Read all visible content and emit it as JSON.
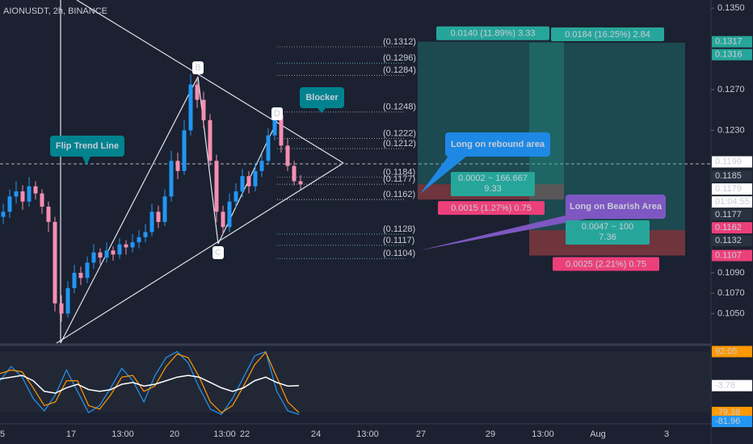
{
  "chart_data": {
    "type": "candlestick",
    "title": "AIONUSDT, 2h, BINANCE",
    "up_color": "#2196f3",
    "down_color": "#f48fb1",
    "candles": [
      [
        0.1145,
        0.1158,
        0.1138,
        0.115
      ],
      [
        0.115,
        0.1172,
        0.1144,
        0.1165
      ],
      [
        0.1165,
        0.118,
        0.1158,
        0.117
      ],
      [
        0.117,
        0.1176,
        0.1152,
        0.116
      ],
      [
        0.116,
        0.1184,
        0.1155,
        0.1175
      ],
      [
        0.1175,
        0.118,
        0.1162,
        0.1168
      ],
      [
        0.1168,
        0.1172,
        0.1148,
        0.1155
      ],
      [
        0.1155,
        0.116,
        0.113,
        0.114
      ],
      [
        0.114,
        0.1145,
        0.1052,
        0.106
      ],
      [
        0.106,
        0.1068,
        0.1042,
        0.105
      ],
      [
        0.105,
        0.1082,
        0.1046,
        0.1075
      ],
      [
        0.1075,
        0.1098,
        0.107,
        0.109
      ],
      [
        0.109,
        0.1096,
        0.1078,
        0.1085
      ],
      [
        0.1085,
        0.1106,
        0.108,
        0.11
      ],
      [
        0.11,
        0.1118,
        0.1094,
        0.111
      ],
      [
        0.111,
        0.1114,
        0.1098,
        0.1105
      ],
      [
        0.1105,
        0.112,
        0.11,
        0.1112
      ],
      [
        0.1112,
        0.1116,
        0.1102,
        0.1108
      ],
      [
        0.1108,
        0.1124,
        0.1104,
        0.1118
      ],
      [
        0.1118,
        0.1122,
        0.1108,
        0.1115
      ],
      [
        0.1115,
        0.1128,
        0.111,
        0.112
      ],
      [
        0.112,
        0.1132,
        0.1114,
        0.1125
      ],
      [
        0.1125,
        0.1138,
        0.112,
        0.113
      ],
      [
        0.113,
        0.1158,
        0.1126,
        0.115
      ],
      [
        0.115,
        0.1156,
        0.1134,
        0.114
      ],
      [
        0.114,
        0.1172,
        0.1136,
        0.1165
      ],
      [
        0.1165,
        0.121,
        0.116,
        0.12
      ],
      [
        0.12,
        0.1208,
        0.1182,
        0.119
      ],
      [
        0.119,
        0.124,
        0.1186,
        0.123
      ],
      [
        0.123,
        0.1285,
        0.1225,
        0.1275
      ],
      [
        0.1275,
        0.1282,
        0.1252,
        0.126
      ],
      [
        0.126,
        0.1268,
        0.1232,
        0.124
      ],
      [
        0.124,
        0.1246,
        0.1195,
        0.12
      ],
      [
        0.12,
        0.1206,
        0.114,
        0.115
      ],
      [
        0.115,
        0.1156,
        0.1128,
        0.1135
      ],
      [
        0.1135,
        0.1168,
        0.113,
        0.116
      ],
      [
        0.116,
        0.1178,
        0.1154,
        0.117
      ],
      [
        0.117,
        0.1192,
        0.1164,
        0.1185
      ],
      [
        0.1185,
        0.119,
        0.1168,
        0.1175
      ],
      [
        0.1175,
        0.1198,
        0.117,
        0.119
      ],
      [
        0.119,
        0.1206,
        0.1184,
        0.12
      ],
      [
        0.12,
        0.1232,
        0.1196,
        0.1225
      ],
      [
        0.1225,
        0.1252,
        0.122,
        0.1245
      ],
      [
        0.1245,
        0.125,
        0.1208,
        0.1215
      ],
      [
        0.1215,
        0.1222,
        0.119,
        0.1195
      ],
      [
        0.1195,
        0.12,
        0.1176,
        0.118
      ],
      [
        0.118,
        0.1186,
        0.1172,
        0.1177
      ]
    ],
    "ylim": [
      0.1021,
      0.1358
    ],
    "yticks": [
      {
        "value": 0.135,
        "label": "0.1350"
      },
      {
        "value": 0.127,
        "label": "0.1270"
      },
      {
        "value": 0.123,
        "label": "0.1230"
      },
      {
        "value": 0.109,
        "label": "0.1090"
      },
      {
        "value": 0.107,
        "label": "0.1070"
      },
      {
        "value": 0.105,
        "label": "0.1050"
      }
    ],
    "xtick_labels": [
      "5",
      "17",
      "13:00",
      "20",
      "13:00",
      "22",
      "24",
      "13:00",
      "27",
      "29",
      "13:00",
      "Aug",
      "3"
    ],
    "price_tags": [
      {
        "value": 0.1317,
        "label": "0.1317",
        "color": "#26a69a"
      },
      {
        "value": 0.1316,
        "label": "0.1316",
        "color": "#26a69a"
      },
      {
        "value": 0.1199,
        "label": "0.1199",
        "color": "#ffffff"
      },
      {
        "value": 0.1185,
        "label": "0.1185",
        "color": "#2a3140"
      },
      {
        "value": 0.1179,
        "label": "0.1179",
        "color": "#ffffff"
      },
      {
        "value": 0.1177,
        "label": "0.1177",
        "color": "#2a3140"
      },
      {
        "value": 0.1162,
        "label": "0.1162",
        "color": "#ec407a"
      },
      {
        "value": 0.1132,
        "label": "0.1132",
        "color": "#2a3140"
      },
      {
        "value": 0.1107,
        "label": "0.1107",
        "color": "#ec407a"
      }
    ],
    "countdown": "01:04:55",
    "fib_levels": [
      {
        "value": 0.1312,
        "label": "(0.1312)",
        "color": "#b2b5be"
      },
      {
        "value": 0.1296,
        "label": "(0.1296)",
        "color": "#80deea"
      },
      {
        "value": 0.1284,
        "label": "(0.1284)",
        "color": "#d1d4dc"
      },
      {
        "value": 0.1248,
        "label": "(0.1248)",
        "color": "#d1d4dc"
      },
      {
        "value": 0.1222,
        "label": "(0.1222)",
        "color": "#d1d4dc"
      },
      {
        "value": 0.1212,
        "label": "(0.1212)",
        "color": "#d1d4dc"
      },
      {
        "value": 0.1184,
        "label": "(0.1184)",
        "color": "#b2b5be"
      },
      {
        "value": 0.1177,
        "label": "(0.1177)",
        "color": "#d1d4dc"
      },
      {
        "value": 0.1162,
        "label": "(0.1162)",
        "color": "#ffffff"
      },
      {
        "value": 0.1128,
        "label": "(0.1128)",
        "color": "#80deea"
      },
      {
        "value": 0.1117,
        "label": "(0.1117)",
        "color": "#80deea"
      },
      {
        "value": 0.1104,
        "label": "(0.1104)",
        "color": "#80deea"
      }
    ],
    "points": [
      "B",
      "C",
      "D"
    ],
    "callouts": [
      "Flip Trend Line",
      "Blocker",
      "Long on rebound area",
      "Long on Bearish Area"
    ],
    "positions": [
      {
        "target": "0.0140 (11.89%) 3.33",
        "entry": [
          "0.0002 ~ 166.667",
          "9.33"
        ],
        "stop": "0.0015 (1.27%) 0.75"
      },
      {
        "target": "0.0184 (16.25%) 2.84",
        "entry": [
          "0.0047 ~ 100",
          "7.36"
        ],
        "stop": "0.0025 (2.21%) 0.75"
      }
    ],
    "oscillator": {
      "ylim": [
        -100,
        100
      ],
      "tags": [
        {
          "value": 92.05,
          "label": "92.05",
          "color": "#ff9800"
        },
        {
          "value": -3.78,
          "label": "-3.78",
          "color": "#ffffff"
        },
        {
          "value": -79.38,
          "label": "-79.38",
          "color": "#ff9800"
        },
        {
          "value": -81.96,
          "label": "-81.96",
          "color": "#2196f3"
        }
      ],
      "series": [
        {
          "color": "#2196f3",
          "values": [
            10,
            50,
            20,
            -40,
            -75,
            -30,
            40,
            -20,
            -80,
            -60,
            -10,
            45,
            10,
            -50,
            25,
            75,
            92,
            60,
            -10,
            -70,
            -85,
            -40,
            20,
            80,
            92,
            -20,
            -75,
            -85
          ]
        },
        {
          "color": "#ff9800",
          "values": [
            30,
            40,
            35,
            -10,
            -60,
            -50,
            10,
            10,
            -60,
            -70,
            -30,
            20,
            25,
            -20,
            -5,
            50,
            85,
            75,
            20,
            -50,
            -80,
            -60,
            -5,
            55,
            90,
            20,
            -50,
            -80
          ]
        },
        {
          "color": "#ffffff",
          "values": [
            15,
            20,
            25,
            10,
            -20,
            -25,
            -10,
            0,
            -15,
            -20,
            -15,
            0,
            5,
            -5,
            0,
            10,
            20,
            25,
            20,
            5,
            -10,
            -20,
            -10,
            10,
            20,
            5,
            -5,
            -3.78
          ]
        }
      ]
    }
  }
}
